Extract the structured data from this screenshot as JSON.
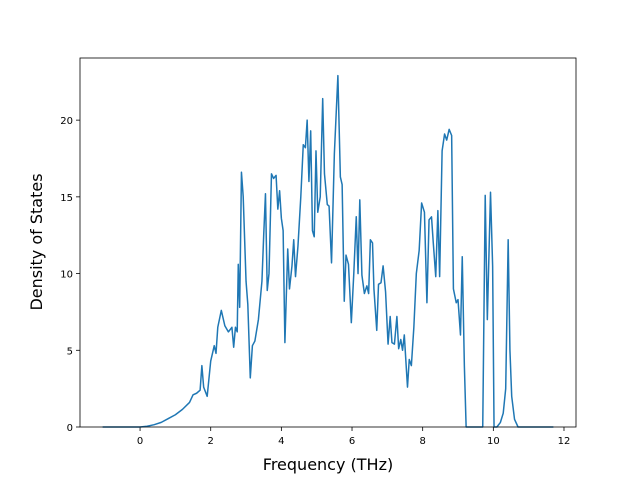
{
  "chart_data": {
    "type": "line",
    "xlabel": "Frequency (THz)",
    "ylabel": "Density of States",
    "x": [
      -1.06,
      0,
      0.2,
      0.4,
      0.6,
      0.8,
      1.0,
      1.2,
      1.4,
      1.5,
      1.6,
      1.7,
      1.75,
      1.8,
      1.9,
      2.0,
      2.1,
      2.15,
      2.2,
      2.3,
      2.4,
      2.5,
      2.6,
      2.65,
      2.7,
      2.75,
      2.78,
      2.82,
      2.87,
      2.92,
      3.0,
      3.05,
      3.12,
      3.18,
      3.25,
      3.35,
      3.45,
      3.5,
      3.55,
      3.6,
      3.65,
      3.72,
      3.78,
      3.85,
      3.9,
      3.95,
      4.0,
      4.05,
      4.1,
      4.18,
      4.23,
      4.3,
      4.35,
      4.4,
      4.47,
      4.55,
      4.62,
      4.68,
      4.73,
      4.78,
      4.83,
      4.88,
      4.93,
      4.98,
      5.03,
      5.1,
      5.17,
      5.22,
      5.3,
      5.35,
      5.42,
      5.5,
      5.6,
      5.67,
      5.72,
      5.78,
      5.83,
      5.9,
      5.98,
      6.05,
      6.12,
      6.17,
      6.22,
      6.28,
      6.35,
      6.42,
      6.47,
      6.52,
      6.58,
      6.62,
      6.7,
      6.75,
      6.82,
      6.88,
      6.95,
      7.02,
      7.08,
      7.13,
      7.2,
      7.27,
      7.32,
      7.38,
      7.43,
      7.48,
      7.53,
      7.57,
      7.62,
      7.68,
      7.75,
      7.82,
      7.9,
      7.97,
      8.05,
      8.12,
      8.18,
      8.25,
      8.3,
      8.37,
      8.43,
      8.48,
      8.55,
      8.62,
      8.68,
      8.75,
      8.82,
      8.87,
      8.95,
      9.0,
      9.07,
      9.12,
      9.18,
      9.23,
      9.7,
      9.77,
      9.83,
      9.92,
      9.98,
      10.02,
      10.1,
      10.2,
      10.28,
      10.35,
      10.42,
      10.47,
      10.52,
      10.6,
      10.7,
      11.7
    ],
    "values": [
      0,
      0,
      0.05,
      0.15,
      0.3,
      0.55,
      0.8,
      1.15,
      1.6,
      2.1,
      2.2,
      2.4,
      4.0,
      2.6,
      2.0,
      4.3,
      5.3,
      4.8,
      6.5,
      7.6,
      6.6,
      6.2,
      6.5,
      5.2,
      6.5,
      6.2,
      10.6,
      7.8,
      16.6,
      15.0,
      9.5,
      8.0,
      3.2,
      5.3,
      5.6,
      7.0,
      9.5,
      12.5,
      15.2,
      8.9,
      10.0,
      16.5,
      16.2,
      16.4,
      14.2,
      15.4,
      13.6,
      12.8,
      5.5,
      11.6,
      9.0,
      10.5,
      12.2,
      9.8,
      11.8,
      15.0,
      18.4,
      18.2,
      20.0,
      16.0,
      19.3,
      12.8,
      12.4,
      18.0,
      14.0,
      15.0,
      21.4,
      16.5,
      14.5,
      14.4,
      10.7,
      17.8,
      22.9,
      16.3,
      15.8,
      8.2,
      11.2,
      10.6,
      6.8,
      10.0,
      13.7,
      10.0,
      14.8,
      9.9,
      8.7,
      9.2,
      8.7,
      12.2,
      12.0,
      9.0,
      6.3,
      9.3,
      9.4,
      10.5,
      8.8,
      5.4,
      7.2,
      5.5,
      5.4,
      7.2,
      5.1,
      5.7,
      5.0,
      6.0,
      4.1,
      2.6,
      4.4,
      4.0,
      6.5,
      10.0,
      11.5,
      14.6,
      14.0,
      8.1,
      13.5,
      13.7,
      12.0,
      9.8,
      14.1,
      9.8,
      18.0,
      19.1,
      18.7,
      19.4,
      19.0,
      9.0,
      8.1,
      8.3,
      6.0,
      11.1,
      4.0,
      0,
      0,
      15.1,
      7.0,
      15.3,
      10.5,
      0,
      0,
      0.3,
      0.9,
      2.5,
      12.2,
      5.0,
      2.0,
      0.5,
      0,
      0
    ],
    "color": "#1f77b4",
    "xlim": [
      -1.7,
      12.34
    ],
    "xticks": [
      0,
      2,
      4,
      6,
      8,
      10,
      12
    ],
    "ylim": [
      0,
      24.05
    ],
    "yticks": [
      0,
      5,
      10,
      15,
      20
    ]
  }
}
